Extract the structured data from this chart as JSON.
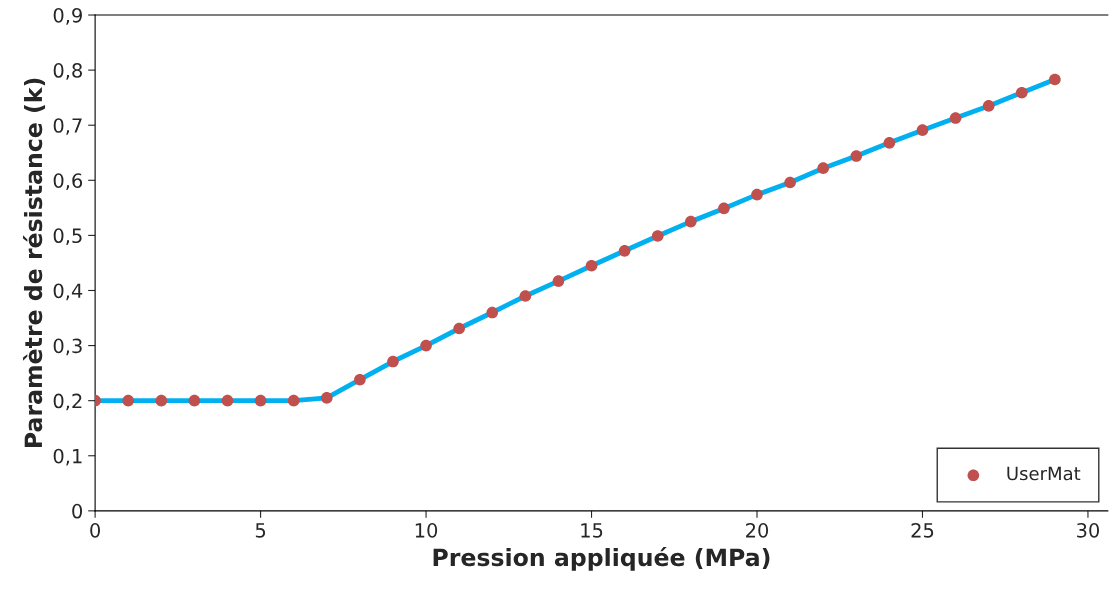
{
  "chart_data": {
    "type": "line",
    "xlabel": "Pression appliquée (MPa)",
    "ylabel": "Paramètre de résistance (k)",
    "x": [
      0,
      1,
      2,
      3,
      4,
      5,
      6,
      7,
      8,
      9,
      10,
      11,
      12,
      13,
      14,
      15,
      16,
      17,
      18,
      19,
      20,
      21,
      22,
      23,
      24,
      25,
      26,
      27,
      28,
      29
    ],
    "series": [
      {
        "color": "#00b0f0",
        "marker": "none",
        "line_style": "solid",
        "values": [
          0.2,
          0.2,
          0.2,
          0.2,
          0.2,
          0.2,
          0.2,
          0.205,
          0.238,
          0.271,
          0.3,
          0.331,
          0.36,
          0.39,
          0.417,
          0.445,
          0.472,
          0.499,
          0.525,
          0.549,
          0.574,
          0.596,
          0.622,
          0.644,
          0.668,
          0.691,
          0.713,
          0.735,
          0.759,
          0.783
        ]
      },
      {
        "type": "scatter",
        "name": "UserMat",
        "color": "#c0504d",
        "marker": "circle",
        "values": [
          0.2,
          0.2,
          0.2,
          0.2,
          0.2,
          0.2,
          0.2,
          0.205,
          0.238,
          0.271,
          0.3,
          0.331,
          0.36,
          0.39,
          0.417,
          0.445,
          0.472,
          0.499,
          0.525,
          0.549,
          0.574,
          0.596,
          0.622,
          0.644,
          0.668,
          0.691,
          0.713,
          0.735,
          0.759,
          0.783
        ]
      }
    ],
    "xlim": [
      0,
      30.6
    ],
    "xticks": [
      0,
      5,
      10,
      15,
      20,
      25,
      30
    ],
    "ylim": [
      0,
      0.9
    ],
    "yticks": [
      0,
      {
        "value": 0.1,
        "label": "0,1"
      },
      {
        "value": 0.2,
        "label": "0,2"
      },
      {
        "value": 0.3,
        "label": "0,3"
      },
      {
        "value": 0.4,
        "label": "0,4"
      },
      {
        "value": 0.5,
        "label": "0,5"
      },
      {
        "value": 0.6,
        "label": "0,6"
      },
      {
        "value": 0.7,
        "label": "0,7"
      },
      {
        "value": 0.8,
        "label": "0,8"
      },
      {
        "value": 0.9,
        "label": "0,9"
      }
    ],
    "grid": false,
    "legend": "bottom right"
  }
}
